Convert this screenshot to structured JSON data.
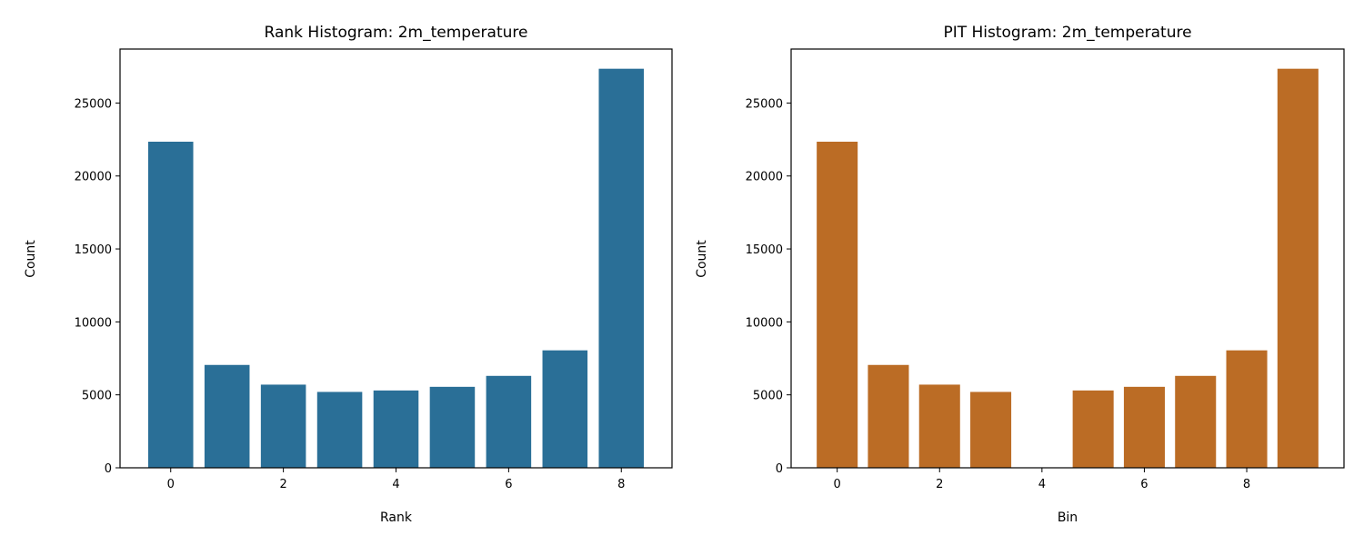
{
  "chart_data": [
    {
      "type": "bar",
      "title": "Rank Histogram: 2m_temperature",
      "xlabel": "Rank",
      "ylabel": "Count",
      "x": [
        0,
        1,
        2,
        3,
        4,
        5,
        6,
        7,
        8
      ],
      "values": [
        22350,
        7050,
        5700,
        5200,
        5300,
        5550,
        6300,
        8050,
        27350
      ],
      "xlim": [
        -0.9,
        8.9
      ],
      "ylim": [
        0,
        28700
      ],
      "xticks": [
        0,
        2,
        4,
        6,
        8
      ],
      "yticks": [
        0,
        5000,
        10000,
        15000,
        20000,
        25000
      ],
      "bar_color": "#2a6f97",
      "grid": false
    },
    {
      "type": "bar",
      "title": "PIT Histogram: 2m_temperature",
      "xlabel": "Bin",
      "ylabel": "Count",
      "x": [
        0,
        1,
        2,
        3,
        4,
        5,
        6,
        7,
        8,
        9
      ],
      "values": [
        22350,
        7050,
        5700,
        5200,
        0,
        5300,
        5550,
        6300,
        8050,
        27350
      ],
      "xlim": [
        -0.9,
        9.9
      ],
      "ylim": [
        0,
        28700
      ],
      "xticks": [
        0,
        2,
        4,
        6,
        8
      ],
      "yticks": [
        0,
        5000,
        10000,
        15000,
        20000,
        25000
      ],
      "bar_color": "#bb6c25",
      "grid": false
    }
  ]
}
